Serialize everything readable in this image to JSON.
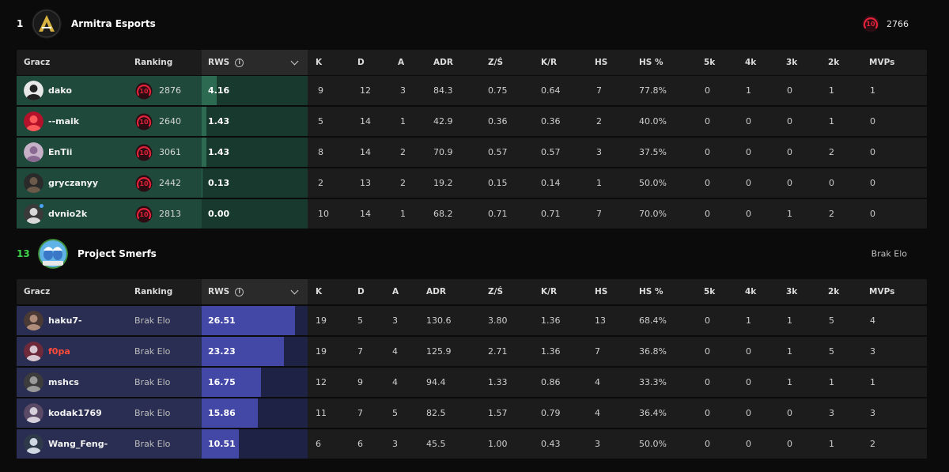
{
  "columns": {
    "player": "Gracz",
    "ranking": "Ranking",
    "rws": "RWS",
    "info": "i",
    "k": "K",
    "d": "D",
    "a": "A",
    "adr": "ADR",
    "zs": "Z/Ś",
    "kr": "K/R",
    "hs": "HS",
    "hs_pct": "HS %",
    "k5": "5k",
    "k4": "4k",
    "k3": "3k",
    "k2": "2k",
    "mvps": "MVPs"
  },
  "level_text": "10",
  "colors": {
    "green_row": "#1f4a3b",
    "purple_row": "#2a2e52",
    "elo_red": "#e0223a",
    "highlight_name": "#ff4b3a"
  },
  "teams": [
    {
      "rank": "1",
      "name": "Armitra Esports",
      "elo": "2766",
      "players": [
        {
          "name": "dako",
          "elo": "2876",
          "rws": "4.16",
          "k": "9",
          "d": "12",
          "a": "3",
          "adr": "84.3",
          "zs": "0.75",
          "kr": "0.64",
          "hs": "7",
          "hs_pct": "77.8%",
          "k5": "0",
          "k4": "1",
          "k3": "0",
          "k2": "1",
          "mvps": "1"
        },
        {
          "name": "--maik",
          "elo": "2640",
          "rws": "1.43",
          "k": "5",
          "d": "14",
          "a": "1",
          "adr": "42.9",
          "zs": "0.36",
          "kr": "0.36",
          "hs": "2",
          "hs_pct": "40.0%",
          "k5": "0",
          "k4": "0",
          "k3": "0",
          "k2": "1",
          "mvps": "0"
        },
        {
          "name": "EnTii",
          "elo": "3061",
          "rws": "1.43",
          "k": "8",
          "d": "14",
          "a": "2",
          "adr": "70.9",
          "zs": "0.57",
          "kr": "0.57",
          "hs": "3",
          "hs_pct": "37.5%",
          "k5": "0",
          "k4": "0",
          "k3": "0",
          "k2": "2",
          "mvps": "0"
        },
        {
          "name": "gryczanyy",
          "elo": "2442",
          "rws": "0.13",
          "k": "2",
          "d": "13",
          "a": "2",
          "adr": "19.2",
          "zs": "0.15",
          "kr": "0.14",
          "hs": "1",
          "hs_pct": "50.0%",
          "k5": "0",
          "k4": "0",
          "k3": "0",
          "k2": "0",
          "mvps": "0"
        },
        {
          "name": "dvnio2k",
          "elo": "2813",
          "rws": "0.00",
          "k": "10",
          "d": "14",
          "a": "1",
          "adr": "68.2",
          "zs": "0.71",
          "kr": "0.71",
          "hs": "7",
          "hs_pct": "70.0%",
          "k5": "0",
          "k4": "0",
          "k3": "1",
          "k2": "2",
          "mvps": "0"
        }
      ]
    },
    {
      "rank": "13",
      "name": "Project Smerfs",
      "elo_text": "Brak Elo",
      "players": [
        {
          "name": "haku7-",
          "elo_text": "Brak Elo",
          "rws": "26.51",
          "k": "19",
          "d": "5",
          "a": "3",
          "adr": "130.6",
          "zs": "3.80",
          "kr": "1.36",
          "hs": "13",
          "hs_pct": "68.4%",
          "k5": "0",
          "k4": "1",
          "k3": "1",
          "k2": "5",
          "mvps": "4"
        },
        {
          "name": "f0pa",
          "elo_text": "Brak Elo",
          "rws": "23.23",
          "k": "19",
          "d": "7",
          "a": "4",
          "adr": "125.9",
          "zs": "2.71",
          "kr": "1.36",
          "hs": "7",
          "hs_pct": "36.8%",
          "k5": "0",
          "k4": "0",
          "k3": "1",
          "k2": "5",
          "mvps": "3"
        },
        {
          "name": "mshcs",
          "elo_text": "Brak Elo",
          "rws": "16.75",
          "k": "12",
          "d": "9",
          "a": "4",
          "adr": "94.4",
          "zs": "1.33",
          "kr": "0.86",
          "hs": "4",
          "hs_pct": "33.3%",
          "k5": "0",
          "k4": "0",
          "k3": "1",
          "k2": "1",
          "mvps": "1"
        },
        {
          "name": "kodak1769",
          "elo_text": "Brak Elo",
          "rws": "15.86",
          "k": "11",
          "d": "7",
          "a": "5",
          "adr": "82.5",
          "zs": "1.57",
          "kr": "0.79",
          "hs": "4",
          "hs_pct": "36.4%",
          "k5": "0",
          "k4": "0",
          "k3": "0",
          "k2": "3",
          "mvps": "3"
        },
        {
          "name": "Wang_Feng-",
          "elo_text": "Brak Elo",
          "rws": "10.51",
          "k": "6",
          "d": "6",
          "a": "3",
          "adr": "45.5",
          "zs": "1.00",
          "kr": "0.43",
          "hs": "3",
          "hs_pct": "50.0%",
          "k5": "0",
          "k4": "0",
          "k3": "0",
          "k2": "1",
          "mvps": "2"
        }
      ]
    }
  ]
}
